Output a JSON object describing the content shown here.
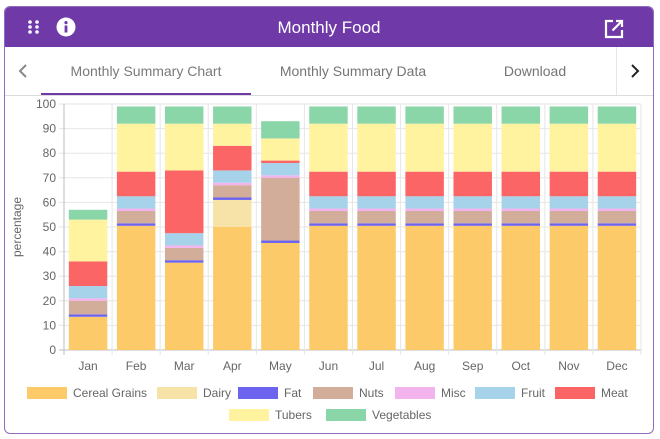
{
  "window": {
    "title": "Monthly Food"
  },
  "tabs": [
    {
      "label": "Monthly Summary Chart",
      "active": true
    },
    {
      "label": "Monthly Summary Data",
      "active": false
    },
    {
      "label": "Download",
      "active": false
    }
  ],
  "icons": {
    "apps": "apps-grid-icon",
    "info": "info-icon",
    "open": "open-in-new-icon",
    "prev": "chevron-left-icon",
    "next": "chevron-right-icon"
  },
  "colors": {
    "header": "#6f3aa8",
    "Cereal Grains": "#fdca6a",
    "Dairy": "#f7e2a8",
    "Fat": "#6c63ef",
    "Nuts": "#d1ad9a",
    "Misc": "#f3b4ee",
    "Fruit": "#a6d3ea",
    "Meat": "#fb6565",
    "Tubers": "#fff3a0",
    "Vegetables": "#8bd6a8"
  },
  "chart_data": {
    "type": "bar",
    "stacked": true,
    "ylabel": "percentage",
    "xlabel": "",
    "ylim": [
      0,
      100
    ],
    "yticks": [
      "0",
      "10",
      "20",
      "30",
      "40",
      "50",
      "60",
      "70",
      "80",
      "90",
      "100"
    ],
    "grid": true,
    "legend_position": "bottom",
    "categories": [
      "Jan",
      "Feb",
      "Mar",
      "Apr",
      "May",
      "Jun",
      "Jul",
      "Aug",
      "Sep",
      "Oct",
      "Nov",
      "Dec"
    ],
    "series": [
      {
        "name": "Cereal Grains",
        "values": [
          13.5,
          50.5,
          35.5,
          50,
          43.5,
          50.5,
          50.5,
          50.5,
          50.5,
          50.5,
          50.5,
          50.5
        ]
      },
      {
        "name": "Dairy",
        "values": [
          0,
          0,
          0,
          11,
          0,
          0,
          0,
          0,
          0,
          0,
          0,
          0
        ]
      },
      {
        "name": "Fat",
        "values": [
          1,
          1,
          1,
          1,
          1,
          1,
          1,
          1,
          1,
          1,
          1,
          1
        ]
      },
      {
        "name": "Nuts",
        "values": [
          5.5,
          5,
          5,
          5,
          25.5,
          5,
          5,
          5,
          5,
          5,
          5,
          5
        ]
      },
      {
        "name": "Misc",
        "values": [
          1,
          1,
          1,
          1,
          1,
          1,
          1,
          1,
          1,
          1,
          1,
          1
        ]
      },
      {
        "name": "Fruit",
        "values": [
          5,
          5,
          5,
          5,
          5,
          5,
          5,
          5,
          5,
          5,
          5,
          5
        ]
      },
      {
        "name": "Meat",
        "values": [
          10,
          10,
          25.5,
          10,
          1,
          10,
          10,
          10,
          10,
          10,
          10,
          10
        ]
      },
      {
        "name": "Tubers",
        "values": [
          17,
          19.5,
          19,
          9,
          9,
          19.5,
          19.5,
          19.5,
          19.5,
          19.5,
          19.5,
          19.5
        ]
      },
      {
        "name": "Vegetables",
        "values": [
          4,
          7,
          7,
          7,
          7,
          7,
          7,
          7,
          7,
          7,
          7,
          7
        ]
      }
    ]
  }
}
